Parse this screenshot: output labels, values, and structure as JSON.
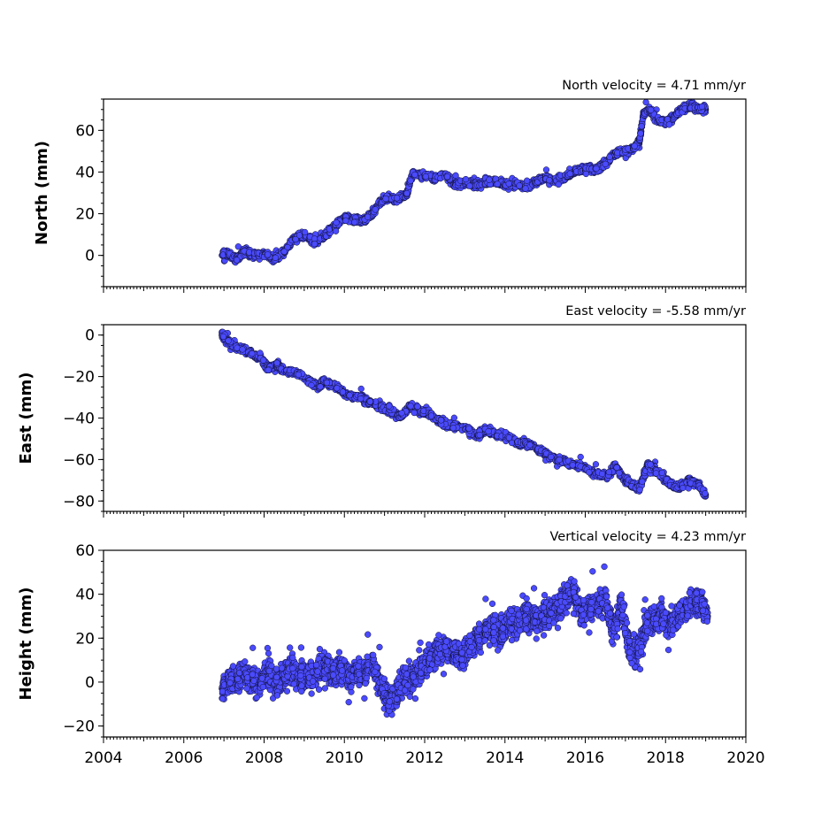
{
  "chart_data": [
    {
      "type": "scatter",
      "title": "North velocity = 4.71 mm/yr",
      "ylabel": "North (mm)",
      "xlabel": "",
      "xlim": [
        2004,
        2020
      ],
      "ylim": [
        -15,
        75
      ],
      "yticks": [
        "0",
        "20",
        "40",
        "60"
      ],
      "xticks": [],
      "grid": false,
      "marker_color": "#4a4aff",
      "series": [
        {
          "x": [
            2006.95,
            2007.1,
            2007.3,
            2007.5,
            2007.75,
            2008.0,
            2008.25,
            2008.5,
            2008.75,
            2009.0,
            2009.25,
            2009.5,
            2009.75,
            2010.0,
            2010.25,
            2010.5,
            2010.7,
            2011.0,
            2011.3,
            2011.55,
            2011.7,
            2012.0,
            2012.25,
            2012.5,
            2012.75,
            2013.0,
            2013.25,
            2013.5,
            2013.75,
            2014.0,
            2014.25,
            2014.5,
            2014.75,
            2015.0,
            2015.25,
            2015.5,
            2015.75,
            2016.0,
            2016.25,
            2016.5,
            2016.75,
            2017.0,
            2017.2,
            2017.35,
            2017.45,
            2017.6,
            2017.8,
            2018.0,
            2018.2,
            2018.4,
            2018.6,
            2018.8,
            2019.0
          ],
          "y": [
            0,
            1,
            -2,
            2,
            0,
            1,
            -2,
            2,
            8,
            10,
            6,
            9,
            14,
            18,
            17,
            17,
            20,
            28,
            27,
            29,
            39,
            39,
            37,
            39,
            34,
            35,
            34,
            35,
            36,
            34,
            34,
            33,
            35,
            37,
            36,
            38,
            40,
            42,
            41,
            44,
            49,
            50,
            51,
            55,
            68,
            70,
            65,
            64,
            66,
            70,
            72,
            70,
            70
          ]
        }
      ]
    },
    {
      "type": "scatter",
      "title": "East velocity = -5.58 mm/yr",
      "ylabel": "East (mm)",
      "xlabel": "",
      "xlim": [
        2004,
        2020
      ],
      "ylim": [
        -85,
        5
      ],
      "yticks": [
        "0",
        "−20",
        "−40",
        "−60",
        "−80"
      ],
      "xticks": [],
      "grid": false,
      "marker_color": "#4a4aff",
      "series": [
        {
          "x": [
            2006.95,
            2007.1,
            2007.3,
            2007.6,
            2007.9,
            2008.1,
            2008.3,
            2008.5,
            2008.8,
            2009.1,
            2009.35,
            2009.5,
            2009.8,
            2010.1,
            2010.4,
            2010.6,
            2010.9,
            2011.1,
            2011.4,
            2011.65,
            2011.9,
            2012.1,
            2012.4,
            2012.7,
            2013.0,
            2013.3,
            2013.5,
            2013.8,
            2014.0,
            2014.3,
            2014.5,
            2014.8,
            2015.0,
            2015.3,
            2015.5,
            2015.8,
            2016.0,
            2016.3,
            2016.55,
            2016.75,
            2017.0,
            2017.15,
            2017.35,
            2017.55,
            2017.75,
            2018.0,
            2018.2,
            2018.4,
            2018.6,
            2018.8,
            2019.0
          ],
          "y": [
            0,
            -3,
            -6,
            -8,
            -11,
            -16,
            -14,
            -17,
            -18,
            -22,
            -25,
            -22,
            -25,
            -29,
            -30,
            -32,
            -35,
            -36,
            -39,
            -34,
            -37,
            -38,
            -42,
            -44,
            -45,
            -48,
            -46,
            -48,
            -48,
            -52,
            -52,
            -55,
            -57,
            -60,
            -61,
            -63,
            -64,
            -67,
            -68,
            -63,
            -70,
            -72,
            -74,
            -63,
            -65,
            -70,
            -73,
            -73,
            -70,
            -72,
            -77
          ]
        }
      ]
    },
    {
      "type": "scatter",
      "title": "Vertical velocity = 4.23 mm/yr",
      "ylabel": "Height (mm)",
      "xlabel": "",
      "xlim": [
        2004,
        2020
      ],
      "ylim": [
        -25,
        60
      ],
      "yticks": [
        "−20",
        "0",
        "20",
        "40",
        "60"
      ],
      "xticks": [
        "2004",
        "2006",
        "2008",
        "2010",
        "2012",
        "2014",
        "2016",
        "2018",
        "2020"
      ],
      "grid": false,
      "marker_color": "#4a4aff",
      "series": [
        {
          "x": [
            2006.95,
            2007.1,
            2007.3,
            2007.5,
            2007.7,
            2007.9,
            2008.1,
            2008.3,
            2008.5,
            2008.7,
            2008.9,
            2009.1,
            2009.3,
            2009.5,
            2009.7,
            2009.9,
            2010.1,
            2010.3,
            2010.5,
            2010.7,
            2010.9,
            2011.1,
            2011.3,
            2011.5,
            2011.7,
            2011.9,
            2012.1,
            2012.3,
            2012.5,
            2012.7,
            2012.9,
            2013.1,
            2013.3,
            2013.5,
            2013.7,
            2013.9,
            2014.1,
            2014.3,
            2014.5,
            2014.7,
            2014.9,
            2015.1,
            2015.3,
            2015.5,
            2015.7,
            2015.9,
            2016.1,
            2016.3,
            2016.5,
            2016.7,
            2016.9,
            2017.1,
            2017.3,
            2017.5,
            2017.7,
            2017.9,
            2018.1,
            2018.3,
            2018.5,
            2018.7,
            2018.9,
            2019.05
          ],
          "y": [
            -3,
            0,
            2,
            4,
            1,
            0,
            5,
            -1,
            3,
            6,
            1,
            3,
            5,
            7,
            4,
            6,
            2,
            5,
            4,
            8,
            0,
            -10,
            -5,
            0,
            2,
            5,
            9,
            13,
            16,
            14,
            12,
            15,
            20,
            23,
            25,
            22,
            28,
            26,
            30,
            28,
            30,
            31,
            34,
            37,
            43,
            30,
            34,
            35,
            38,
            22,
            35,
            15,
            12,
            25,
            28,
            30,
            26,
            30,
            33,
            38,
            36,
            30
          ]
        }
      ]
    }
  ]
}
